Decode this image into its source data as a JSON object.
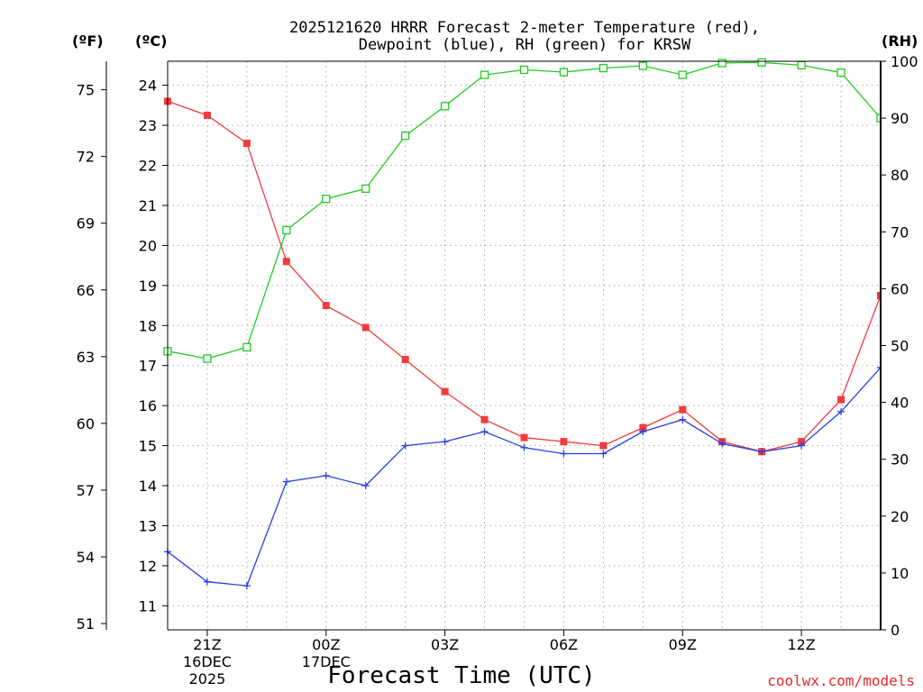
{
  "chart_data": {
    "type": "line",
    "title_lines": [
      "2025121620 HRRR Forecast 2-meter Temperature (red),",
      "Dewpoint (blue), RH (green) for KRSW"
    ],
    "xlabel": "Forecast Time (UTC)",
    "units": {
      "fahrenheit": "(ºF)",
      "celsius": "(ºC)",
      "rh": "(RH)"
    },
    "x_hours": [
      0,
      1,
      2,
      3,
      4,
      5,
      6,
      7,
      8,
      9,
      10,
      11,
      12,
      13,
      14,
      15,
      16,
      17,
      18
    ],
    "x_ticks": [
      {
        "hour": 1,
        "lines": [
          "21Z",
          "16DEC",
          "2025"
        ]
      },
      {
        "hour": 4,
        "lines": [
          "00Z",
          "17DEC"
        ]
      },
      {
        "hour": 7,
        "lines": [
          "03Z"
        ]
      },
      {
        "hour": 10,
        "lines": [
          "06Z"
        ]
      },
      {
        "hour": 13,
        "lines": [
          "09Z"
        ]
      },
      {
        "hour": 16,
        "lines": [
          "12Z"
        ]
      }
    ],
    "celsius_axis": {
      "range": [
        10.4,
        24.6
      ],
      "ticks": [
        11,
        12,
        13,
        14,
        15,
        16,
        17,
        18,
        19,
        20,
        21,
        22,
        23,
        24
      ]
    },
    "fahrenheit_axis": {
      "ticks": [
        51,
        54,
        57,
        60,
        63,
        66,
        69,
        72,
        75
      ]
    },
    "rh_axis": {
      "range": [
        0,
        100
      ],
      "ticks": [
        0,
        10,
        20,
        30,
        40,
        50,
        60,
        70,
        80,
        90,
        100
      ]
    },
    "series": [
      {
        "name": "Temperature",
        "unit": "C",
        "color": "#f03c3c",
        "marker": "filled-square",
        "values": [
          23.6,
          23.25,
          22.55,
          19.6,
          18.5,
          17.95,
          17.15,
          16.35,
          15.65,
          15.2,
          15.1,
          15.0,
          15.45,
          15.9,
          15.1,
          14.85,
          15.1,
          16.15,
          18.75
        ]
      },
      {
        "name": "Dewpoint",
        "unit": "C",
        "color": "#2a3fe0",
        "marker": "plus",
        "values": [
          12.35,
          11.6,
          11.5,
          14.1,
          14.25,
          14.0,
          15.0,
          15.1,
          15.35,
          14.95,
          14.8,
          14.8,
          15.35,
          15.65,
          15.05,
          14.85,
          15.0,
          15.85,
          16.95
        ]
      },
      {
        "name": "RH",
        "unit": "%",
        "color": "#22cc22",
        "marker": "open-square",
        "values": [
          49,
          47.7,
          49.7,
          70.3,
          75.8,
          77.6,
          86.9,
          92.1,
          97.6,
          98.5,
          98.1,
          98.8,
          99.2,
          97.6,
          99.7,
          99.8,
          99.3,
          98.0,
          90.0
        ]
      }
    ]
  },
  "footer": {
    "credit": "coolwx.com/models"
  }
}
